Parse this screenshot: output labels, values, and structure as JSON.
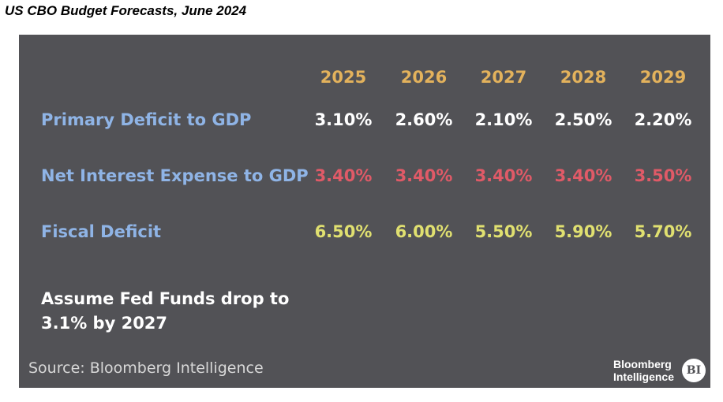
{
  "title": "US CBO Budget Forecasts, June 2024",
  "chart_data": {
    "type": "table",
    "columns": [
      "2025",
      "2026",
      "2027",
      "2028",
      "2029"
    ],
    "rows": [
      {
        "label": "Primary Deficit to GDP",
        "values": [
          "3.10%",
          "2.60%",
          "2.10%",
          "2.50%",
          "2.20%"
        ],
        "color": "#ffffff"
      },
      {
        "label": "Net Interest Expense to GDP",
        "values": [
          "3.40%",
          "3.40%",
          "3.40%",
          "3.40%",
          "3.50%"
        ],
        "color": "#e05a67"
      },
      {
        "label": "Fiscal Deficit",
        "values": [
          "6.50%",
          "6.00%",
          "5.50%",
          "5.90%",
          "5.70%"
        ],
        "color": "#e0e070"
      }
    ],
    "header_color": "#e3b25c",
    "label_color": "#8fb4e6"
  },
  "note": "Assume Fed Funds drop to 3.1% by 2027",
  "source": "Source: Bloomberg Intelligence",
  "brand": {
    "line1": "Bloomberg",
    "line2": "Intelligence",
    "badge": "BI"
  },
  "colors": {
    "panel": "#525256"
  }
}
